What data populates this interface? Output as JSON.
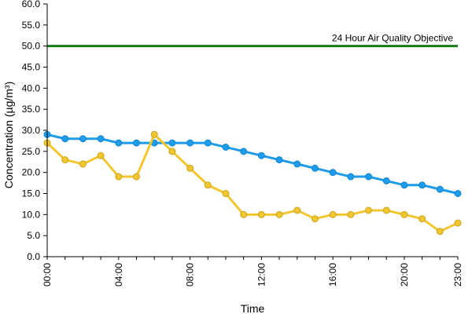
{
  "chart_data": {
    "type": "line",
    "xlabel": "Time",
    "ylabel": "Concentration (µg/m³)",
    "ylim": [
      0,
      60
    ],
    "yticks": [
      "0.0",
      "5.0",
      "10.0",
      "15.0",
      "20.0",
      "25.0",
      "30.0",
      "35.0",
      "40.0",
      "45.0",
      "50.0",
      "55.0",
      "60.0"
    ],
    "x": [
      "00:00",
      "01:00",
      "02:00",
      "03:00",
      "04:00",
      "05:00",
      "06:00",
      "07:00",
      "08:00",
      "09:00",
      "10:00",
      "11:00",
      "12:00",
      "13:00",
      "14:00",
      "15:00",
      "16:00",
      "17:00",
      "18:00",
      "19:00",
      "20:00",
      "21:00",
      "22:00",
      "23:00"
    ],
    "xtick_labels": [
      "00:00",
      "04:00",
      "08:00",
      "12:00",
      "16:00",
      "20:00",
      "23:00"
    ],
    "grid": false,
    "series": [
      {
        "color": "#1e9be9",
        "values": [
          29,
          28,
          28,
          28,
          27,
          27,
          27,
          27,
          27,
          27,
          26,
          25,
          24,
          23,
          22,
          21,
          20,
          19,
          19,
          18,
          17,
          17,
          16,
          15
        ]
      },
      {
        "color": "#f2c62f",
        "values": [
          27,
          23,
          22,
          24,
          19,
          19,
          29,
          25,
          21,
          17,
          15,
          10,
          10,
          10,
          11,
          9,
          10,
          10,
          11,
          11,
          10,
          9,
          6,
          8
        ]
      }
    ],
    "reference_line": {
      "label": "24 Hour Air Quality Objective",
      "value": 50,
      "color": "#1a7a1a"
    }
  }
}
